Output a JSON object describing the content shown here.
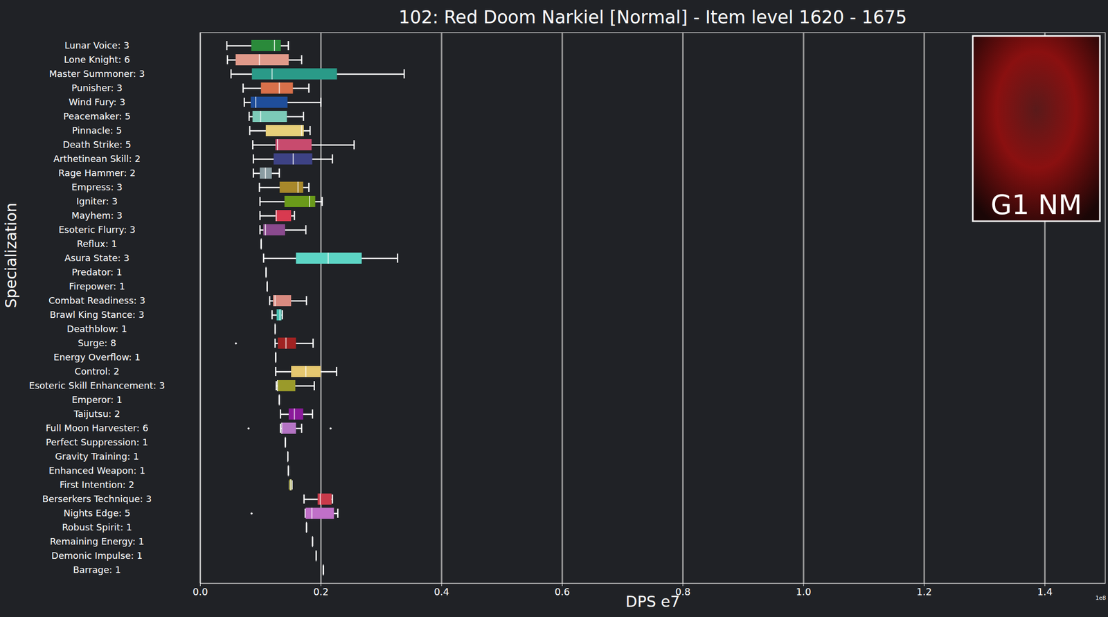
{
  "chart_data": {
    "type": "boxplot",
    "orientation": "horizontal",
    "title": "102: Red Doom Narkiel [Normal] - Item level 1620 - 1675",
    "xlabel": "DPS e7",
    "ylabel": "Specialization",
    "annotations": [
      "1e8",
      "G1 NM"
    ],
    "grid": true,
    "xlim": [
      0,
      1.5
    ],
    "xticks": [
      {
        "value": 0,
        "label": "0.0"
      },
      {
        "value": 0.2,
        "label": "0.2"
      },
      {
        "value": 0.4,
        "label": "0.4"
      },
      {
        "value": 0.6,
        "label": "0.6"
      },
      {
        "value": 0.8,
        "label": "0.8"
      },
      {
        "value": 1.0,
        "label": "1.0"
      },
      {
        "value": 1.2,
        "label": "1.2"
      },
      {
        "value": 1.4,
        "label": "1.4"
      }
    ],
    "categories": [
      "Lunar Voice: 3",
      "Lone Knight: 6",
      "Master Summoner: 3",
      "Punisher: 3",
      "Wind Fury: 3",
      "Peacemaker: 5",
      "Pinnacle: 5",
      "Death Strike: 5",
      "Arthetinean Skill: 2",
      "Rage Hammer: 2",
      "Empress: 3",
      "Igniter: 3",
      "Mayhem: 3",
      "Esoteric Flurry: 3",
      "Reflux: 1",
      "Asura State: 3",
      "Predator: 1",
      "Firepower: 1",
      "Combat Readiness: 3",
      "Brawl King Stance: 3",
      "Deathblow: 1",
      "Surge: 8",
      "Energy Overflow: 1",
      "Control: 2",
      "Esoteric Skill Enhancement: 3",
      "Emperor: 1",
      "Taijutsu: 2",
      "Full Moon Harvester: 6",
      "Perfect Suppression: 1",
      "Gravity Training: 1",
      "Enhanced Weapon: 1",
      "First Intention: 2",
      "Berserkers Technique: 3",
      "Nights Edge: 5",
      "Robust Spirit: 1",
      "Remaining Energy: 1",
      "Demonic Impulse: 1",
      "Barrage: 1"
    ],
    "colors": [
      "#2a8a3a",
      "#e0998a",
      "#2a9a88",
      "#d8704a",
      "#1f4e9a",
      "#7ccab8",
      "#e8d07a",
      "#c84b6e",
      "#3d4284",
      "#8a9ca2",
      "#a8882a",
      "#6a9a1a",
      "#d83a50",
      "#8a4a8e",
      "#5a8a1a",
      "#5cd4c4",
      "#c0603a",
      "#3a6a2a",
      "#d88a80",
      "#48c2b2",
      "#7a3a7e",
      "#a02222",
      "#2a4a7a",
      "#e6c870",
      "#9a9a2a",
      "#9a7a2a",
      "#8a1a9a",
      "#b474c4",
      "#1a7a9a",
      "#6a7a82",
      "#3a3a8e",
      "#8a8a1a",
      "#c83a4a",
      "#c070c8",
      "#2a4a6a",
      "#8a1a1a",
      "#1a7a9a",
      "#2a5a2a"
    ],
    "stats": [
      {
        "min": 0.044,
        "q1": 0.085,
        "median": 0.123,
        "q3": 0.134,
        "max": 0.146,
        "outliers": []
      },
      {
        "min": 0.045,
        "q1": 0.059,
        "median": 0.098,
        "q3": 0.147,
        "max": 0.168,
        "outliers": []
      },
      {
        "min": 0.051,
        "q1": 0.086,
        "median": 0.119,
        "q3": 0.227,
        "max": 0.338,
        "outliers": []
      },
      {
        "min": 0.071,
        "q1": 0.101,
        "median": 0.131,
        "q3": 0.154,
        "max": 0.18,
        "outliers": []
      },
      {
        "min": 0.073,
        "q1": 0.084,
        "median": 0.092,
        "q3": 0.145,
        "max": 0.2,
        "outliers": []
      },
      {
        "min": 0.081,
        "q1": 0.087,
        "median": 0.1,
        "q3": 0.144,
        "max": 0.171,
        "outliers": []
      },
      {
        "min": 0.082,
        "q1": 0.109,
        "median": 0.168,
        "q3": 0.172,
        "max": 0.182,
        "outliers": []
      },
      {
        "min": 0.087,
        "q1": 0.125,
        "median": 0.128,
        "q3": 0.185,
        "max": 0.255,
        "outliers": []
      },
      {
        "min": 0.088,
        "q1": 0.122,
        "median": 0.154,
        "q3": 0.186,
        "max": 0.219,
        "outliers": []
      },
      {
        "min": 0.088,
        "q1": 0.099,
        "median": 0.108,
        "q3": 0.119,
        "max": 0.131,
        "outliers": []
      },
      {
        "min": 0.098,
        "q1": 0.132,
        "median": 0.162,
        "q3": 0.171,
        "max": 0.18,
        "outliers": []
      },
      {
        "min": 0.099,
        "q1": 0.14,
        "median": 0.181,
        "q3": 0.191,
        "max": 0.202,
        "outliers": []
      },
      {
        "min": 0.099,
        "q1": 0.125,
        "median": 0.126,
        "q3": 0.151,
        "max": 0.156,
        "outliers": []
      },
      {
        "min": 0.099,
        "q1": 0.105,
        "median": 0.108,
        "q3": 0.141,
        "max": 0.175,
        "outliers": []
      },
      {
        "min": 0.101,
        "q1": 0.101,
        "median": 0.101,
        "q3": 0.101,
        "max": 0.101,
        "outliers": []
      },
      {
        "min": 0.105,
        "q1": 0.159,
        "median": 0.212,
        "q3": 0.268,
        "max": 0.327,
        "outliers": []
      },
      {
        "min": 0.109,
        "q1": 0.109,
        "median": 0.109,
        "q3": 0.109,
        "max": 0.109,
        "outliers": []
      },
      {
        "min": 0.111,
        "q1": 0.111,
        "median": 0.111,
        "q3": 0.111,
        "max": 0.111,
        "outliers": []
      },
      {
        "min": 0.115,
        "q1": 0.121,
        "median": 0.124,
        "q3": 0.151,
        "max": 0.176,
        "outliers": []
      },
      {
        "min": 0.119,
        "q1": 0.127,
        "median": 0.132,
        "q3": 0.135,
        "max": 0.136,
        "outliers": []
      },
      {
        "min": 0.124,
        "q1": 0.124,
        "median": 0.124,
        "q3": 0.124,
        "max": 0.124,
        "outliers": []
      },
      {
        "min": 0.124,
        "q1": 0.129,
        "median": 0.142,
        "q3": 0.159,
        "max": 0.187,
        "outliers": [
          0.059
        ]
      },
      {
        "min": 0.125,
        "q1": 0.125,
        "median": 0.125,
        "q3": 0.125,
        "max": 0.125,
        "outliers": []
      },
      {
        "min": 0.125,
        "q1": 0.151,
        "median": 0.175,
        "q3": 0.2,
        "max": 0.226,
        "outliers": []
      },
      {
        "min": 0.126,
        "q1": 0.128,
        "median": 0.128,
        "q3": 0.158,
        "max": 0.189,
        "outliers": []
      },
      {
        "min": 0.131,
        "q1": 0.131,
        "median": 0.131,
        "q3": 0.131,
        "max": 0.131,
        "outliers": []
      },
      {
        "min": 0.133,
        "q1": 0.147,
        "median": 0.156,
        "q3": 0.171,
        "max": 0.186,
        "outliers": []
      },
      {
        "min": 0.133,
        "q1": 0.135,
        "median": 0.135,
        "q3": 0.159,
        "max": 0.168,
        "outliers": [
          0.08,
          0.216
        ]
      },
      {
        "min": 0.141,
        "q1": 0.141,
        "median": 0.141,
        "q3": 0.141,
        "max": 0.141,
        "outliers": []
      },
      {
        "min": 0.145,
        "q1": 0.145,
        "median": 0.145,
        "q3": 0.145,
        "max": 0.145,
        "outliers": []
      },
      {
        "min": 0.146,
        "q1": 0.146,
        "median": 0.146,
        "q3": 0.146,
        "max": 0.146,
        "outliers": []
      },
      {
        "min": 0.148,
        "q1": 0.148,
        "median": 0.15,
        "q3": 0.152,
        "max": 0.152,
        "outliers": []
      },
      {
        "min": 0.172,
        "q1": 0.195,
        "median": 0.199,
        "q3": 0.218,
        "max": 0.219,
        "outliers": []
      },
      {
        "min": 0.174,
        "q1": 0.175,
        "median": 0.185,
        "q3": 0.222,
        "max": 0.228,
        "outliers": [
          0.085
        ]
      },
      {
        "min": 0.176,
        "q1": 0.176,
        "median": 0.176,
        "q3": 0.176,
        "max": 0.176,
        "outliers": []
      },
      {
        "min": 0.186,
        "q1": 0.186,
        "median": 0.186,
        "q3": 0.186,
        "max": 0.186,
        "outliers": []
      },
      {
        "min": 0.192,
        "q1": 0.192,
        "median": 0.192,
        "q3": 0.192,
        "max": 0.192,
        "outliers": []
      },
      {
        "min": 0.204,
        "q1": 0.204,
        "median": 0.204,
        "q3": 0.204,
        "max": 0.204,
        "outliers": []
      }
    ]
  }
}
